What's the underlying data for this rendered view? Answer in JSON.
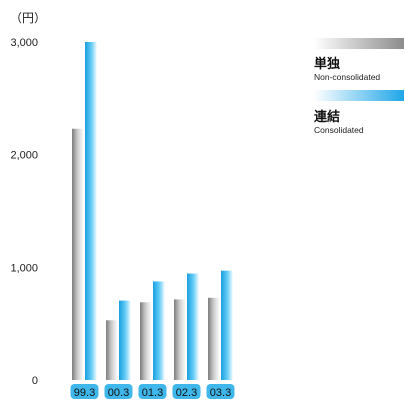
{
  "chart_data": {
    "type": "bar",
    "unit_label": "（円）",
    "categories": [
      "99.3",
      "00.3",
      "01.3",
      "02.3",
      "03.3"
    ],
    "series": [
      {
        "name": "単独",
        "name_en": "Non-consolidated",
        "values": [
          2230,
          530,
          690,
          715,
          730
        ]
      },
      {
        "name": "連結",
        "name_en": "Consolidated",
        "values": [
          3000,
          705,
          875,
          945,
          970
        ]
      }
    ],
    "yticks": [
      0,
      1000,
      2000,
      3000
    ],
    "ytick_labels": [
      "0",
      "1,000",
      "2,000",
      "3,000"
    ],
    "ylim": [
      0,
      3000
    ],
    "grid": false,
    "legend_position": "top-right",
    "colors": {
      "non_consolidated": "#9a9a9a",
      "consolidated": "#33b5ee",
      "category_badge": "#3fb7ea"
    }
  }
}
